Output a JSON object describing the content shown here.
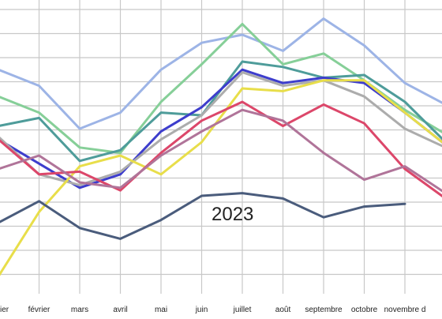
{
  "chart_data": {
    "type": "line",
    "categories": [
      "janvier",
      "février",
      "mars",
      "avril",
      "mai",
      "juin",
      "juillet",
      "août",
      "septembre",
      "octobre",
      "novembre",
      "décembre"
    ],
    "category_labels_visible": [
      "ier",
      "février",
      "mars",
      "avril",
      "mai",
      "juin",
      "juillet",
      "août",
      "septembre",
      "octobre",
      "novembre d"
    ],
    "ylim": [
      0,
      100
    ],
    "grid": true,
    "annotation": "2023",
    "series": [
      {
        "color": "#9db4e6",
        "values": [
          77,
          71,
          55,
          61,
          77,
          87,
          90,
          84,
          96,
          86,
          72,
          64
        ]
      },
      {
        "color": "#86cf98",
        "values": [
          67,
          61,
          48,
          46,
          65,
          79,
          94,
          79,
          83,
          73,
          62,
          53
        ]
      },
      {
        "color": "#4e9c9a",
        "values": [
          56,
          59,
          43,
          47,
          61,
          60,
          80,
          78,
          74,
          75,
          65,
          50
        ]
      },
      {
        "color": "#3d3dcc",
        "values": [
          51,
          42,
          33,
          38,
          54,
          63,
          77,
          72,
          74,
          72,
          61,
          49
        ]
      },
      {
        "color": "#acacac",
        "values": [
          52,
          38,
          34,
          39,
          51,
          60,
          76,
          71,
          73,
          67,
          55,
          48
        ]
      },
      {
        "color": "#e8de4a",
        "values": [
          0,
          24,
          41,
          45,
          38,
          50,
          70,
          69,
          73,
          73,
          61,
          49
        ]
      },
      {
        "color": "#dc476a",
        "values": [
          51,
          38,
          39,
          32,
          46,
          58,
          65,
          56,
          64,
          57,
          40,
          29
        ]
      },
      {
        "color": "#b07499",
        "values": [
          40,
          45,
          35,
          33,
          45,
          54,
          62,
          58,
          46,
          36,
          41,
          31
        ]
      },
      {
        "color": "#4a5c7c",
        "values": [
          20,
          28,
          18,
          14,
          21,
          30,
          31,
          29,
          22,
          26,
          27,
          null
        ]
      }
    ]
  }
}
